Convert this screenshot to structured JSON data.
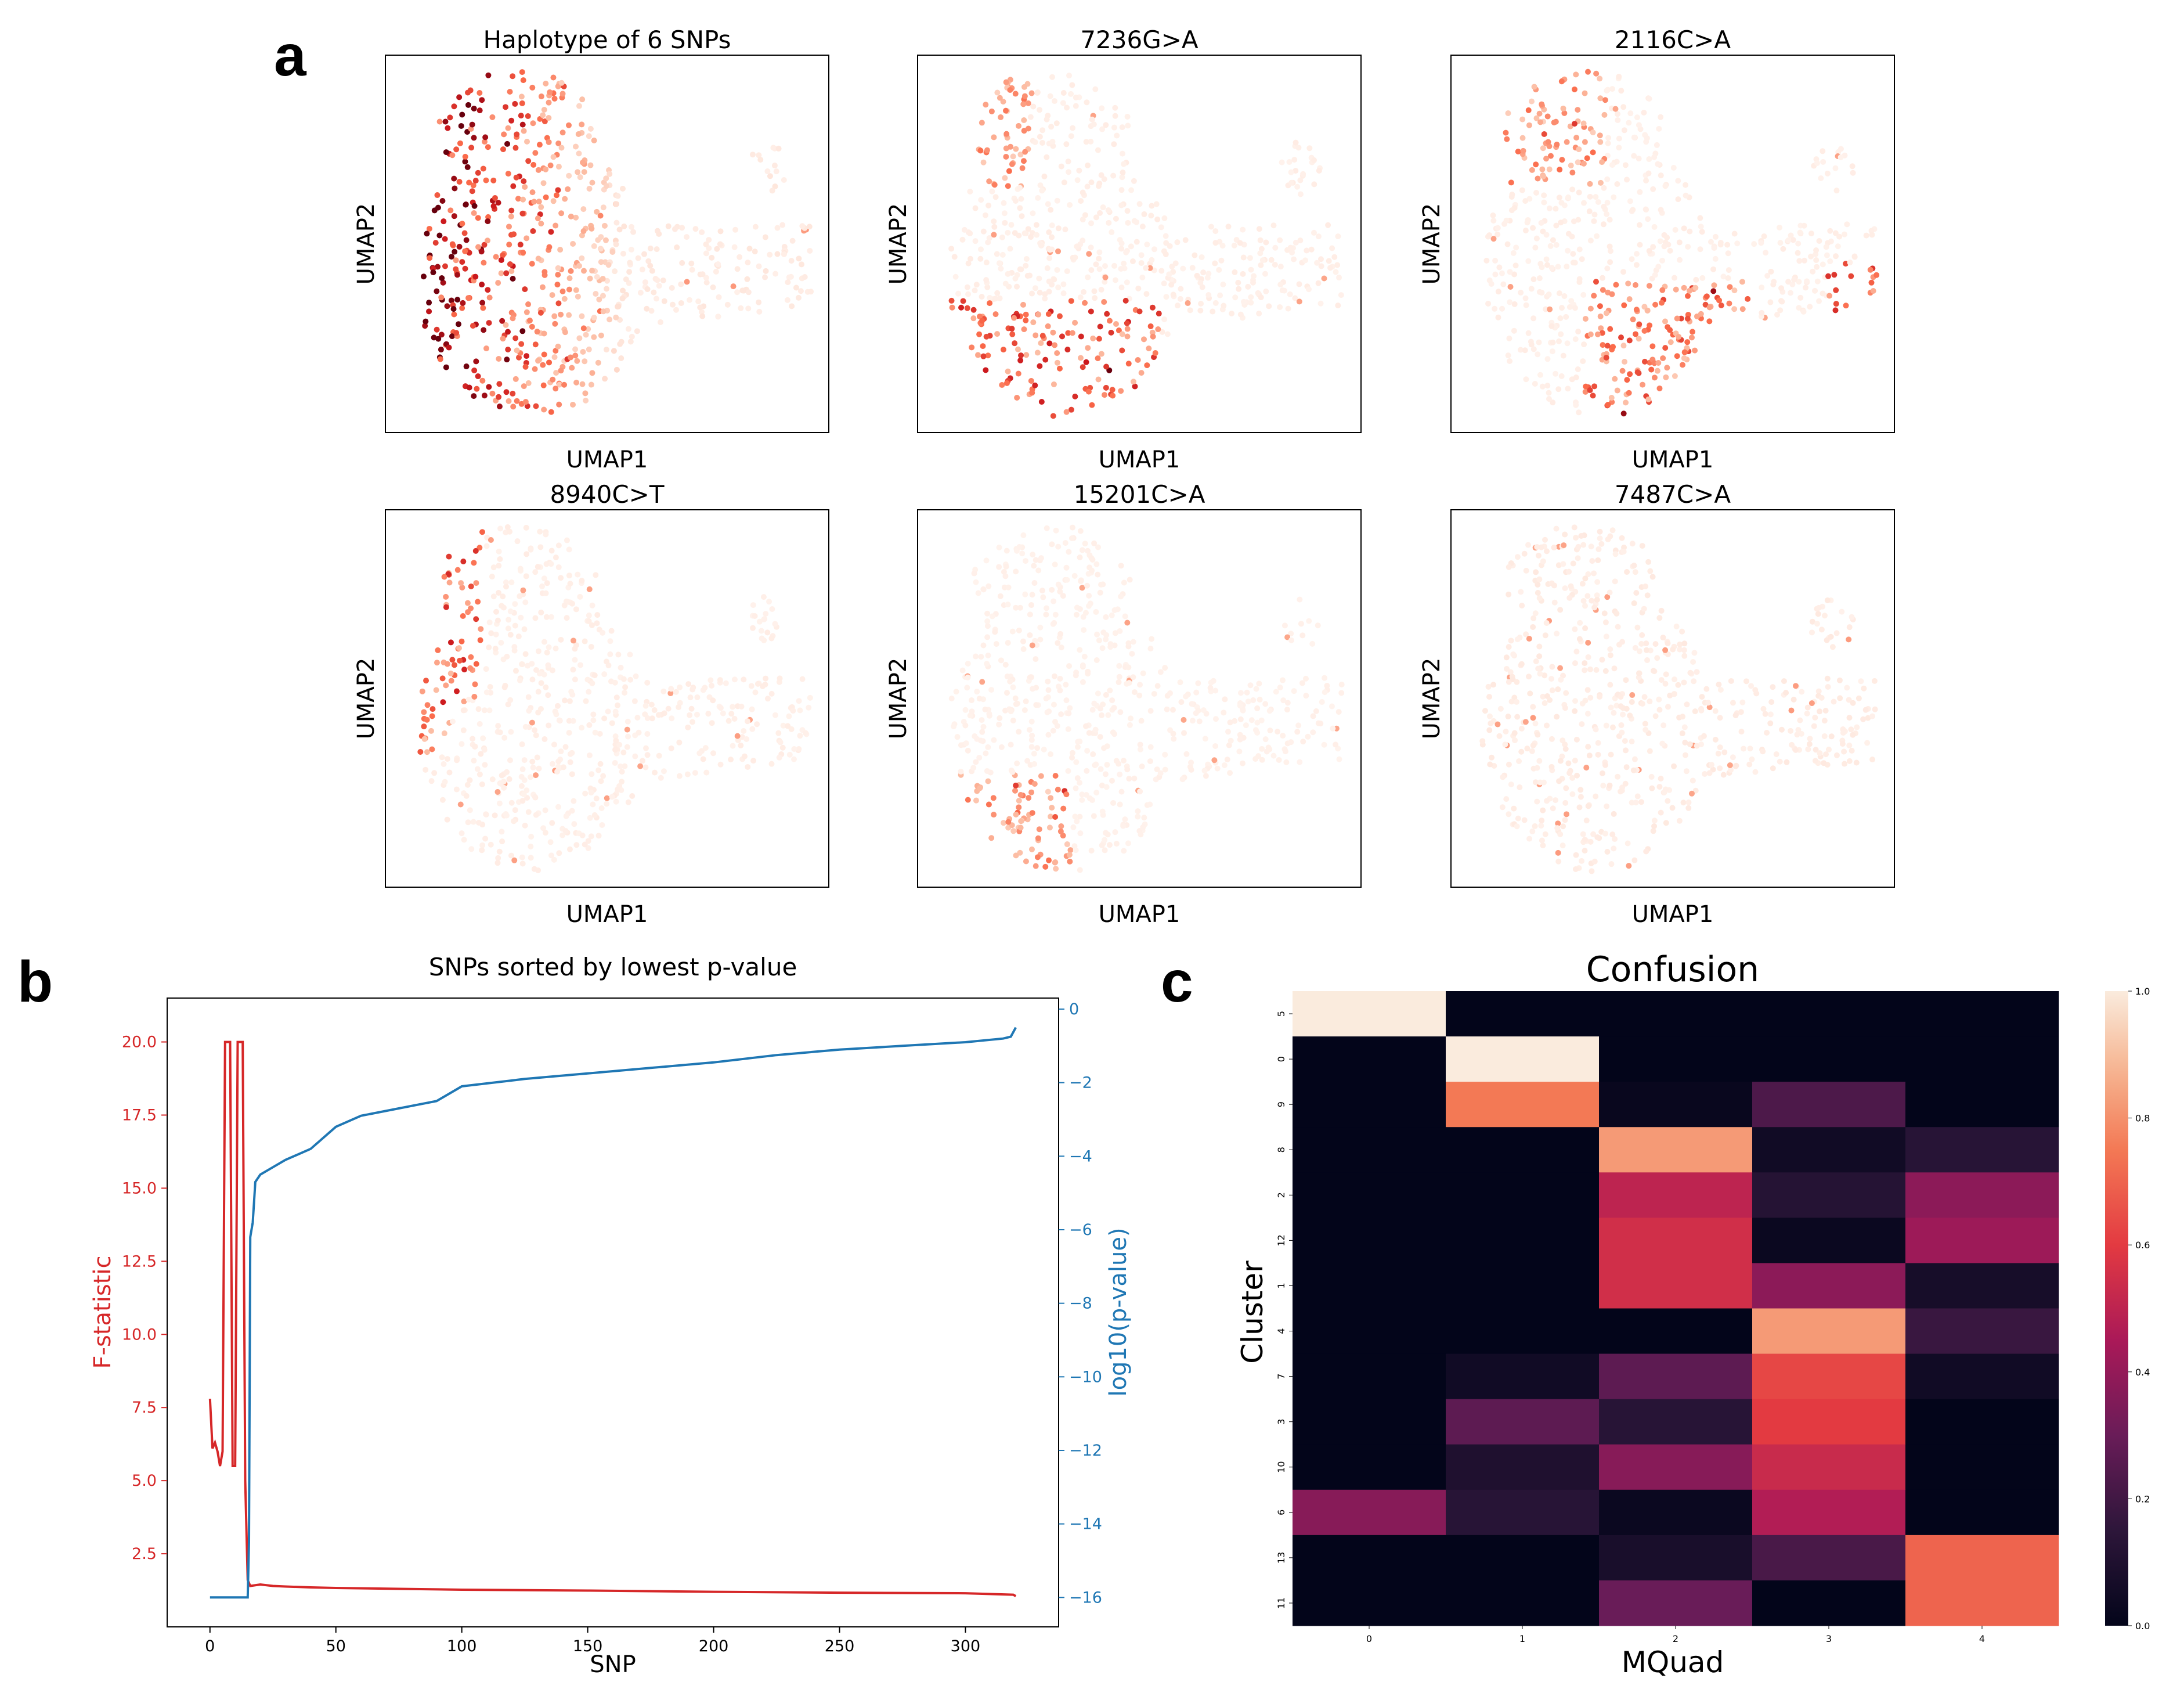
{
  "panel_letters": [
    "a",
    "b",
    "c"
  ],
  "umap_axis": {
    "xlabel": "UMAP1",
    "ylabel": "UMAP2"
  },
  "colors": {
    "f_statistic": "#d62728",
    "log10_p": "#1f77b4",
    "reds_light": "#fff5f0",
    "reds_dark": "#a50f15"
  },
  "chart_data": [
    {
      "type": "scatter",
      "title": "Haplotype of 6 SNPs",
      "xlabel": "UMAP1",
      "ylabel": "UMAP2",
      "colormap": "Reds",
      "grid": false,
      "note_values": "single-cell UMAP embedding colored by allele frequency; strongest (dark red) on the left side of the embedding"
    },
    {
      "type": "scatter",
      "title": "7236G>A",
      "xlabel": "UMAP1",
      "ylabel": "UMAP2",
      "colormap": "Reds",
      "grid": false
    },
    {
      "type": "scatter",
      "title": "2116C>A",
      "xlabel": "UMAP1",
      "ylabel": "UMAP2",
      "colormap": "Reds",
      "grid": false
    },
    {
      "type": "scatter",
      "title": "8940C>T",
      "xlabel": "UMAP1",
      "ylabel": "UMAP2",
      "colormap": "Reds",
      "grid": false
    },
    {
      "type": "scatter",
      "title": "15201C>A",
      "xlabel": "UMAP1",
      "ylabel": "UMAP2",
      "colormap": "Reds",
      "grid": false
    },
    {
      "type": "scatter",
      "title": "7487C>A",
      "xlabel": "UMAP1",
      "ylabel": "UMAP2",
      "colormap": "Reds",
      "grid": false
    },
    {
      "type": "line",
      "title": "SNPs sorted by lowest p-value",
      "xlabel": "SNP",
      "ylabel_left": "F-statistic",
      "ylabel_right": "log10(p-value)",
      "xlim": [
        -17,
        337
      ],
      "ylim_left": [
        0,
        21.5
      ],
      "ylim_right": [
        -16.8,
        0.3
      ],
      "xticks": [
        0,
        50,
        100,
        150,
        200,
        250,
        300
      ],
      "yticks_left": [
        "2.5",
        "5.0",
        "7.5",
        "10.0",
        "12.5",
        "15.0",
        "17.5",
        "20.0"
      ],
      "yticks_right": [
        "−16",
        "−14",
        "−12",
        "−10",
        "−8",
        "−6",
        "−4",
        "−2",
        "0"
      ],
      "grid": false,
      "series": [
        {
          "name": "F-statistic",
          "axis": "left",
          "points": [
            [
              0,
              7.8
            ],
            [
              1,
              6.1
            ],
            [
              2,
              6.3
            ],
            [
              3,
              6.0
            ],
            [
              4,
              5.5
            ],
            [
              5,
              6.0
            ],
            [
              6,
              20.0
            ],
            [
              7,
              20.0
            ],
            [
              8,
              20.0
            ],
            [
              9,
              5.5
            ],
            [
              10,
              5.5
            ],
            [
              11,
              20.0
            ],
            [
              12,
              20.0
            ],
            [
              13,
              20.0
            ],
            [
              14,
              5.0
            ],
            [
              15,
              1.6
            ],
            [
              16,
              1.4
            ],
            [
              20,
              1.45
            ],
            [
              25,
              1.4
            ],
            [
              30,
              1.38
            ],
            [
              40,
              1.35
            ],
            [
              50,
              1.33
            ],
            [
              75,
              1.3
            ],
            [
              100,
              1.27
            ],
            [
              150,
              1.24
            ],
            [
              200,
              1.2
            ],
            [
              250,
              1.17
            ],
            [
              300,
              1.15
            ],
            [
              319,
              1.1
            ],
            [
              320,
              1.05
            ]
          ]
        },
        {
          "name": "log10(p-value)",
          "axis": "right",
          "points": [
            [
              0,
              -16.0
            ],
            [
              15,
              -16.0
            ],
            [
              15.5,
              -14.5
            ],
            [
              16,
              -6.2
            ],
            [
              17,
              -5.8
            ],
            [
              18,
              -4.7
            ],
            [
              20,
              -4.5
            ],
            [
              25,
              -4.3
            ],
            [
              30,
              -4.1
            ],
            [
              40,
              -3.8
            ],
            [
              50,
              -3.2
            ],
            [
              60,
              -2.9
            ],
            [
              75,
              -2.7
            ],
            [
              90,
              -2.5
            ],
            [
              100,
              -2.1
            ],
            [
              125,
              -1.9
            ],
            [
              150,
              -1.75
            ],
            [
              175,
              -1.6
            ],
            [
              200,
              -1.45
            ],
            [
              225,
              -1.25
            ],
            [
              250,
              -1.1
            ],
            [
              275,
              -1.0
            ],
            [
              300,
              -0.9
            ],
            [
              315,
              -0.8
            ],
            [
              318,
              -0.75
            ],
            [
              320,
              -0.5
            ]
          ]
        }
      ]
    },
    {
      "type": "heatmap",
      "title": "Confusion",
      "xlabel": "MQuad",
      "ylabel": "Cluster",
      "colormap": "rocket",
      "x_categories": [
        "0",
        "1",
        "2",
        "3",
        "4"
      ],
      "y_categories": [
        "5",
        "0",
        "9",
        "8",
        "2",
        "12",
        "1",
        "4",
        "7",
        "3",
        "10",
        "6",
        "13",
        "11"
      ],
      "colorbar_ticks": [
        "0.0",
        "0.2",
        "0.4",
        "0.6",
        "0.8",
        "1.0"
      ],
      "vmin": 0,
      "vmax": 1,
      "values": [
        [
          1.0,
          0.0,
          0.0,
          0.0,
          0.0
        ],
        [
          0.0,
          1.0,
          0.0,
          0.0,
          0.0
        ],
        [
          0.0,
          0.75,
          0.02,
          0.23,
          0.0
        ],
        [
          0.0,
          0.0,
          0.82,
          0.05,
          0.13
        ],
        [
          0.0,
          0.0,
          0.5,
          0.12,
          0.38
        ],
        [
          0.0,
          0.0,
          0.55,
          0.03,
          0.42
        ],
        [
          0.0,
          0.0,
          0.55,
          0.38,
          0.07
        ],
        [
          0.0,
          0.0,
          0.0,
          0.82,
          0.18
        ],
        [
          0.0,
          0.05,
          0.27,
          0.63,
          0.05
        ],
        [
          0.0,
          0.27,
          0.13,
          0.6,
          0.0
        ],
        [
          0.0,
          0.1,
          0.37,
          0.53,
          0.0
        ],
        [
          0.37,
          0.13,
          0.03,
          0.47,
          0.0
        ],
        [
          0.0,
          0.0,
          0.08,
          0.22,
          0.7
        ],
        [
          0.0,
          0.0,
          0.3,
          0.0,
          0.7
        ]
      ]
    }
  ]
}
